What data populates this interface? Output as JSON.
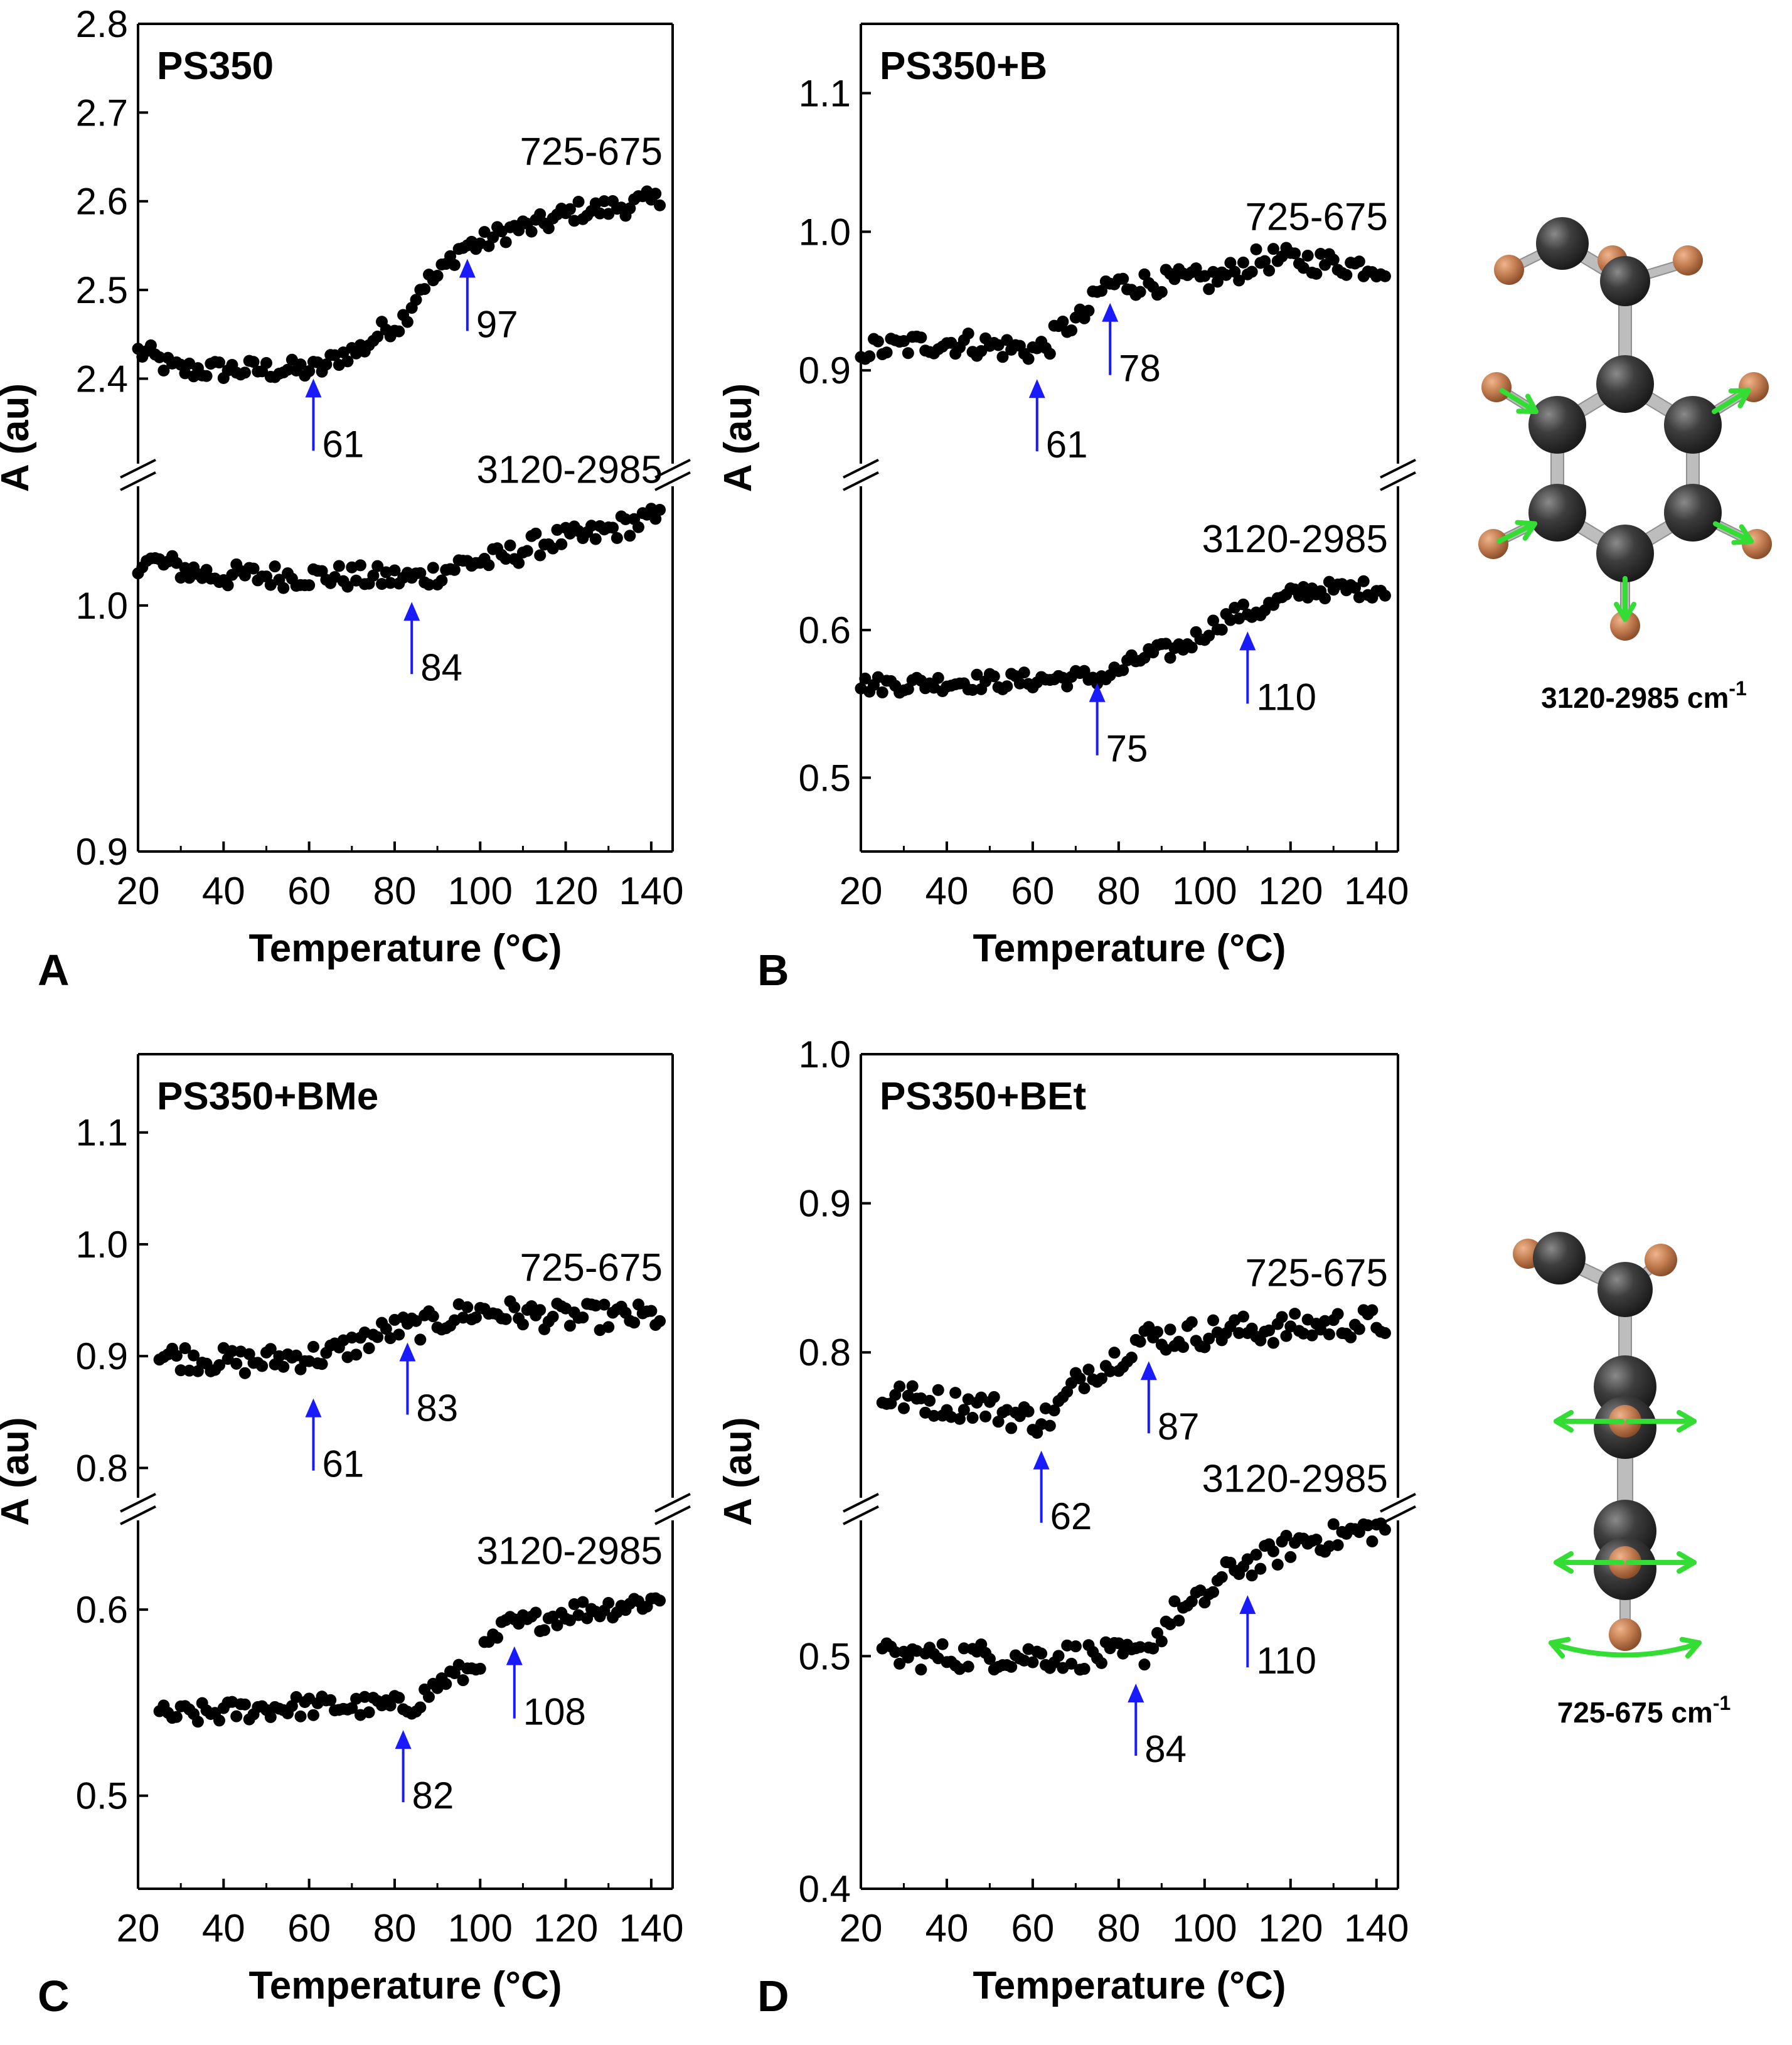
{
  "chart_data": [
    {
      "panel_letter": "A",
      "type": "scatter",
      "title": "PS350",
      "xlabel": "Temperature (°C)",
      "ylabel": "A (au)",
      "xlim": [
        20,
        145
      ],
      "x_ticks": [
        20,
        40,
        60,
        80,
        100,
        120,
        140
      ],
      "grid": false,
      "upper": {
        "label": "725-675",
        "ylim": [
          2.3,
          2.8
        ],
        "y_ticks": [
          2.4,
          2.5,
          2.6,
          2.7,
          2.8
        ],
        "x_range": [
          20,
          142
        ],
        "anchors": [
          [
            20,
            2.43
          ],
          [
            30,
            2.41
          ],
          [
            45,
            2.41
          ],
          [
            61,
            2.41
          ],
          [
            70,
            2.43
          ],
          [
            80,
            2.46
          ],
          [
            88,
            2.51
          ],
          [
            97,
            2.55
          ],
          [
            110,
            2.57
          ],
          [
            125,
            2.59
          ],
          [
            142,
            2.6
          ]
        ],
        "noise": 0.012,
        "arrows": [
          {
            "x": 61,
            "y": 2.41,
            "label": "61"
          },
          {
            "x": 97,
            "y": 2.545,
            "label": "97"
          }
        ]
      },
      "lower": {
        "label": "3120-2985",
        "ylim": [
          0.9,
          1.05
        ],
        "y_ticks": [
          0.9,
          1.0
        ],
        "x_range": [
          20,
          142
        ],
        "anchors": [
          [
            20,
            1.018
          ],
          [
            40,
            1.012
          ],
          [
            60,
            1.012
          ],
          [
            84,
            1.011
          ],
          [
            100,
            1.018
          ],
          [
            120,
            1.027
          ],
          [
            142,
            1.035
          ]
        ],
        "noise": 0.005,
        "arrows": [
          {
            "x": 84,
            "y": 1.005,
            "label": "84"
          }
        ]
      }
    },
    {
      "panel_letter": "B",
      "type": "scatter",
      "title": "PS350+B",
      "xlabel": "Temperature (°C)",
      "ylabel": "A (au)",
      "xlim": [
        20,
        145
      ],
      "x_ticks": [
        20,
        40,
        60,
        80,
        100,
        120,
        140
      ],
      "grid": false,
      "upper": {
        "label": "725-675",
        "ylim": [
          0.83,
          1.15
        ],
        "y_ticks": [
          0.9,
          1.0,
          1.1
        ],
        "x_range": [
          20,
          142
        ],
        "anchors": [
          [
            20,
            0.915
          ],
          [
            40,
            0.92
          ],
          [
            61,
            0.915
          ],
          [
            70,
            0.935
          ],
          [
            78,
            0.962
          ],
          [
            100,
            0.965
          ],
          [
            115,
            0.98
          ],
          [
            142,
            0.975
          ]
        ],
        "noise": 0.009,
        "arrows": [
          {
            "x": 61,
            "y": 0.9,
            "label": "61"
          },
          {
            "x": 78,
            "y": 0.955,
            "label": "78"
          }
        ]
      },
      "lower": {
        "label": "3120-2985",
        "ylim": [
          0.45,
          0.7
        ],
        "y_ticks": [
          0.5,
          0.6
        ],
        "x_range": [
          20,
          142
        ],
        "anchors": [
          [
            20,
            0.563
          ],
          [
            50,
            0.565
          ],
          [
            75,
            0.568
          ],
          [
            90,
            0.585
          ],
          [
            110,
            0.612
          ],
          [
            125,
            0.627
          ],
          [
            142,
            0.628
          ]
        ],
        "noise": 0.006,
        "arrows": [
          {
            "x": 75,
            "y": 0.57,
            "label": "75"
          },
          {
            "x": 110,
            "y": 0.605,
            "label": "110"
          }
        ]
      }
    },
    {
      "panel_letter": "C",
      "type": "scatter",
      "title": "PS350+BMe",
      "xlabel": "Temperature (°C)",
      "ylabel": "A (au)",
      "xlim": [
        20,
        145
      ],
      "x_ticks": [
        20,
        40,
        60,
        80,
        100,
        120,
        140
      ],
      "grid": false,
      "upper": {
        "label": "725-675",
        "ylim": [
          0.77,
          1.17
        ],
        "y_ticks": [
          0.8,
          0.9,
          1.0,
          1.1
        ],
        "x_range": [
          25,
          142
        ],
        "anchors": [
          [
            25,
            0.9
          ],
          [
            45,
            0.895
          ],
          [
            61,
            0.9
          ],
          [
            83,
            0.925
          ],
          [
            100,
            0.94
          ],
          [
            120,
            0.935
          ],
          [
            142,
            0.935
          ]
        ],
        "noise": 0.012,
        "arrows": [
          {
            "x": 61,
            "y": 0.87,
            "label": "61"
          },
          {
            "x": 83,
            "y": 0.92,
            "label": "83"
          }
        ]
      },
      "lower": {
        "label": "3120-2985",
        "ylim": [
          0.45,
          0.65
        ],
        "y_ticks": [
          0.5,
          0.6
        ],
        "x_range": [
          25,
          142
        ],
        "anchors": [
          [
            25,
            0.543
          ],
          [
            60,
            0.548
          ],
          [
            82,
            0.548
          ],
          [
            95,
            0.565
          ],
          [
            108,
            0.592
          ],
          [
            125,
            0.6
          ],
          [
            142,
            0.605
          ]
        ],
        "noise": 0.006,
        "arrows": [
          {
            "x": 82,
            "y": 0.54,
            "label": "82"
          },
          {
            "x": 108,
            "y": 0.585,
            "label": "108"
          }
        ]
      }
    },
    {
      "panel_letter": "D",
      "type": "scatter",
      "title": "PS350+BEt",
      "xlabel": "Temperature (°C)",
      "ylabel": "A (au)",
      "xlim": [
        20,
        145
      ],
      "x_ticks": [
        20,
        40,
        60,
        80,
        100,
        120,
        140
      ],
      "grid": false,
      "upper": {
        "label": "725-675",
        "ylim": [
          0.7,
          1.0
        ],
        "y_ticks": [
          0.8,
          0.9,
          1.0
        ],
        "x_range": [
          25,
          142
        ],
        "anchors": [
          [
            25,
            0.77
          ],
          [
            45,
            0.765
          ],
          [
            62,
            0.755
          ],
          [
            75,
            0.79
          ],
          [
            87,
            0.81
          ],
          [
            110,
            0.815
          ],
          [
            142,
            0.82
          ]
        ],
        "noise": 0.01,
        "arrows": [
          {
            "x": 62,
            "y": 0.74,
            "label": "62"
          },
          {
            "x": 87,
            "y": 0.8,
            "label": "87"
          }
        ]
      },
      "lower": {
        "label": "3120-2985",
        "ylim": [
          0.4,
          0.56
        ],
        "y_ticks": [
          0.4,
          0.5
        ],
        "x_range": [
          25,
          142
        ],
        "anchors": [
          [
            25,
            0.5
          ],
          [
            60,
            0.5
          ],
          [
            84,
            0.5
          ],
          [
            95,
            0.52
          ],
          [
            110,
            0.54
          ],
          [
            125,
            0.55
          ],
          [
            142,
            0.555
          ]
        ],
        "noise": 0.006,
        "arrows": [
          {
            "x": 84,
            "y": 0.492,
            "label": "84"
          },
          {
            "x": 110,
            "y": 0.53,
            "label": "110"
          }
        ]
      }
    }
  ],
  "molecules": {
    "top": {
      "label": "3120-2985 cm",
      "superscript": "-1"
    },
    "bottom": {
      "label": "725-675 cm",
      "superscript": "-1"
    },
    "colors": {
      "carbon": "#3e3e3e",
      "hydrogen": "#c07a4e",
      "bond": "#bdbdbd",
      "vibration": "#33dd33"
    }
  },
  "colors": {
    "points": "#000000",
    "arrows": "#1a1aff",
    "axes": "#000000"
  }
}
